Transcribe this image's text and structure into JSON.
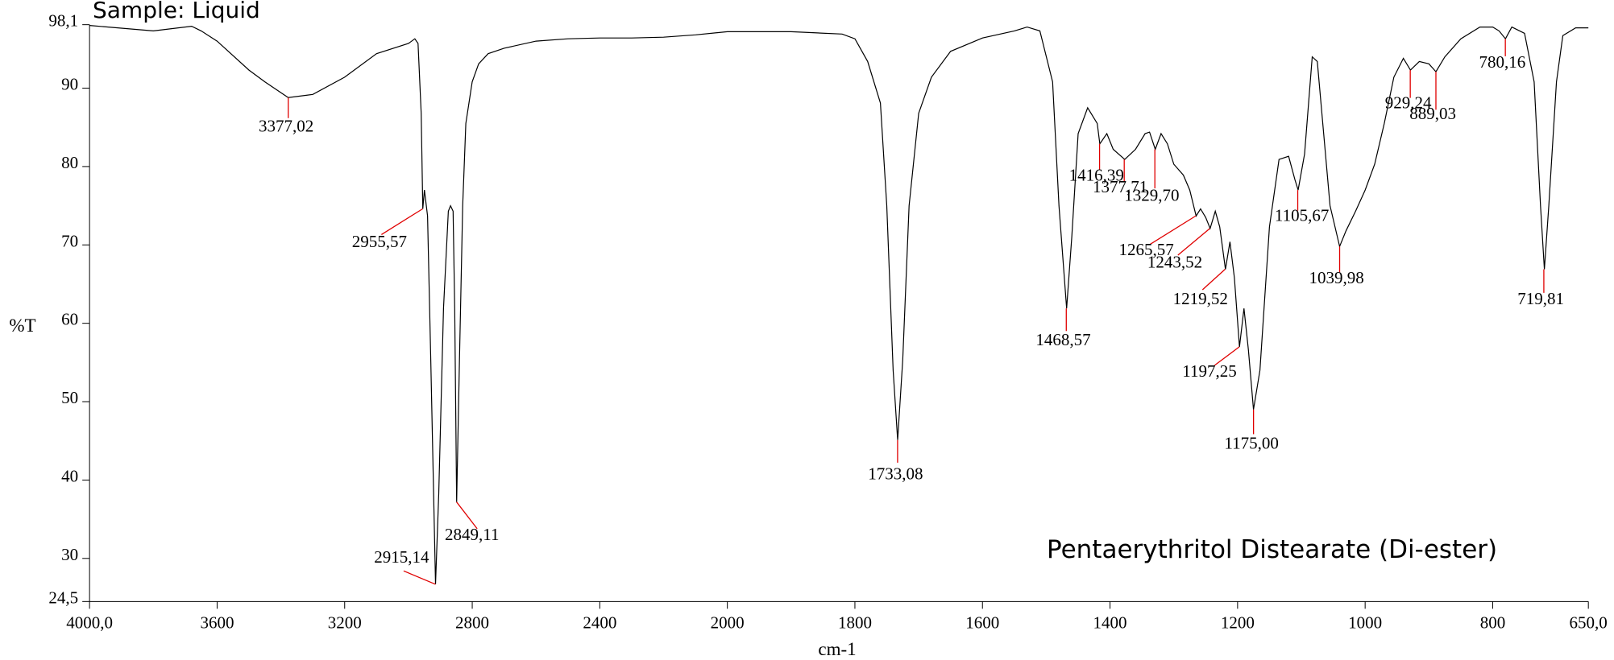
{
  "chart_data": {
    "type": "line",
    "title": "Sample: Liquid",
    "annotation": "Pentaerythritol Distearate (Di-ester)",
    "y_label": "%T",
    "x_label": "cm-1",
    "color": "#000000",
    "peak_color": "#e00000",
    "xlim": [
      4000,
      650
    ],
    "x_scale_break": 2000,
    "x_scale_factor": 2,
    "ylim": [
      24.5,
      98.1
    ],
    "xticks": [
      {
        "value": 4000,
        "label": "4000,0"
      },
      3600,
      3200,
      2800,
      2400,
      2000,
      1800,
      1600,
      1400,
      1200,
      1000,
      800,
      {
        "value": 650,
        "label": "650,0"
      }
    ],
    "yticks": [
      {
        "value": 24.5,
        "label": "24,5"
      },
      30,
      40,
      50,
      60,
      70,
      80,
      90,
      {
        "value": 98.1,
        "label": "98,1"
      }
    ],
    "x": [
      4000,
      3800,
      3680,
      3650,
      3600,
      3500,
      3450,
      3377,
      3300,
      3200,
      3100,
      3000,
      2980,
      2970,
      2960,
      2955,
      2950,
      2940,
      2930,
      2915,
      2905,
      2890,
      2875,
      2868,
      2860,
      2855,
      2849,
      2840,
      2830,
      2820,
      2800,
      2780,
      2750,
      2700,
      2600,
      2500,
      2400,
      2300,
      2200,
      2100,
      2000,
      1900,
      1820,
      1800,
      1780,
      1760,
      1750,
      1740,
      1733,
      1725,
      1715,
      1700,
      1680,
      1650,
      1600,
      1550,
      1530,
      1510,
      1490,
      1480,
      1468,
      1460,
      1450,
      1435,
      1420,
      1416,
      1405,
      1395,
      1377,
      1360,
      1345,
      1338,
      1329,
      1320,
      1310,
      1300,
      1285,
      1275,
      1265,
      1258,
      1250,
      1243,
      1235,
      1228,
      1219,
      1212,
      1205,
      1197,
      1190,
      1183,
      1175,
      1165,
      1150,
      1135,
      1120,
      1110,
      1105,
      1095,
      1083,
      1075,
      1065,
      1055,
      1040,
      1030,
      1015,
      1000,
      985,
      970,
      955,
      940,
      929,
      915,
      900,
      889,
      875,
      850,
      820,
      800,
      790,
      780,
      770,
      750,
      735,
      725,
      719,
      712,
      700,
      690,
      670,
      650
    ],
    "values": [
      98.0,
      97.3,
      97.9,
      97.3,
      96.0,
      92.3,
      90.8,
      88.8,
      89.2,
      91.4,
      94.4,
      95.7,
      96.3,
      95.7,
      86.8,
      74.6,
      77.0,
      73.7,
      55.3,
      26.7,
      38.3,
      61.9,
      74.3,
      75.0,
      74.3,
      61.9,
      37.2,
      55.3,
      75.0,
      85.5,
      90.8,
      93.1,
      94.4,
      95.1,
      96.0,
      96.3,
      96.4,
      96.4,
      96.5,
      96.8,
      97.2,
      97.2,
      96.9,
      96.3,
      93.4,
      88.1,
      75.0,
      54.0,
      45.1,
      55.3,
      75.0,
      86.8,
      91.4,
      94.7,
      96.4,
      97.3,
      97.8,
      97.3,
      90.8,
      75.0,
      61.9,
      71.0,
      84.2,
      87.5,
      85.5,
      82.9,
      84.2,
      82.2,
      80.9,
      82.2,
      84.2,
      84.4,
      82.2,
      84.2,
      82.9,
      80.3,
      78.9,
      77.0,
      73.7,
      74.6,
      73.5,
      72.1,
      74.3,
      72.3,
      66.9,
      70.4,
      65.8,
      57.0,
      61.9,
      56.6,
      49.0,
      54.0,
      72.3,
      80.9,
      81.3,
      78.3,
      77.0,
      81.6,
      94.0,
      93.4,
      84.2,
      75.0,
      69.8,
      71.8,
      74.3,
      77.0,
      80.3,
      85.5,
      91.4,
      93.8,
      92.3,
      93.4,
      93.1,
      92.1,
      94.0,
      96.3,
      97.8,
      97.8,
      97.3,
      96.3,
      97.8,
      97.0,
      90.8,
      75.0,
      66.9,
      75.0,
      90.8,
      96.7,
      97.7,
      97.7
    ],
    "peaks": [
      {
        "label": "3377,02",
        "x": 3377.02,
        "y": 88.8
      },
      {
        "label": "2955,57",
        "x": 2955.57,
        "y": 74.6
      },
      {
        "label": "2915,14",
        "x": 2915.14,
        "y": 26.7
      },
      {
        "label": "2849,11",
        "x": 2849.11,
        "y": 37.2
      },
      {
        "label": "1733,08",
        "x": 1733.08,
        "y": 45.1
      },
      {
        "label": "1468,57",
        "x": 1468.57,
        "y": 61.9
      },
      {
        "label": "1416,39",
        "x": 1416.39,
        "y": 82.9
      },
      {
        "label": "1377,71",
        "x": 1377.71,
        "y": 80.9
      },
      {
        "label": "1329,70",
        "x": 1329.7,
        "y": 82.2
      },
      {
        "label": "1265,57",
        "x": 1265.57,
        "y": 73.7
      },
      {
        "label": "1243,52",
        "x": 1243.52,
        "y": 72.1
      },
      {
        "label": "1219,52",
        "x": 1219.52,
        "y": 66.9
      },
      {
        "label": "1197,25",
        "x": 1197.25,
        "y": 57.0
      },
      {
        "label": "1175,00",
        "x": 1175.0,
        "y": 49.0
      },
      {
        "label": "1105,67",
        "x": 1105.67,
        "y": 77.0
      },
      {
        "label": "1039,98",
        "x": 1039.98,
        "y": 69.8
      },
      {
        "label": "929,24",
        "x": 929.24,
        "y": 92.3
      },
      {
        "label": "889,03",
        "x": 889.03,
        "y": 92.1
      },
      {
        "label": "780,16",
        "x": 780.16,
        "y": 96.3
      },
      {
        "label": "719,81",
        "x": 719.81,
        "y": 66.9
      }
    ]
  }
}
